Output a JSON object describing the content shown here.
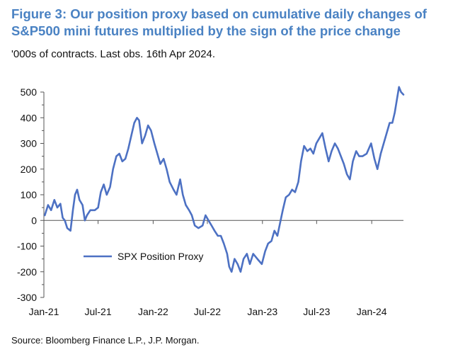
{
  "title": "Figure 3: Our position proxy based on cumulative daily changes of S&P500 mini futures multiplied by the sign of the price change",
  "subtitle": "'000s of contracts. Last obs. 16th Apr 2024.",
  "source": "Source: Bloomberg Finance L.P., J.P. Morgan.",
  "colors": {
    "title": "#4a82c3",
    "series": "#4d71c3",
    "axis": "#555555"
  },
  "chart_data": {
    "type": "line",
    "title": "Figure 3: Our position proxy based on cumulative daily changes of S&P500 mini futures multiplied by the sign of the price change",
    "subtitle": "'000s of contracts. Last obs. 16th Apr 2024.",
    "xlabel": "",
    "ylabel": "",
    "x_range": [
      "2021-01-01",
      "2024-04-16"
    ],
    "ylim": [
      -300,
      500
    ],
    "y_ticks": [
      -300,
      -200,
      -100,
      0,
      100,
      200,
      300,
      400,
      500
    ],
    "x_tick_labels": [
      "Jan-21",
      "Jul-21",
      "Jan-22",
      "Jul-22",
      "Jan-23",
      "Jul-23",
      "Jan-24"
    ],
    "x_tick_dates": [
      "2021-01-01",
      "2021-07-01",
      "2022-01-01",
      "2022-07-01",
      "2023-01-01",
      "2023-07-01",
      "2024-01-01"
    ],
    "grid": false,
    "legend_position": "left, lower-middle",
    "series": [
      {
        "name": "SPX Position Proxy",
        "points": [
          [
            "2021-01-04",
            20
          ],
          [
            "2021-01-15",
            60
          ],
          [
            "2021-01-25",
            40
          ],
          [
            "2021-02-05",
            80
          ],
          [
            "2021-02-15",
            50
          ],
          [
            "2021-02-25",
            65
          ],
          [
            "2021-03-05",
            10
          ],
          [
            "2021-03-12",
            0
          ],
          [
            "2021-03-20",
            -30
          ],
          [
            "2021-03-31",
            -40
          ],
          [
            "2021-04-08",
            40
          ],
          [
            "2021-04-15",
            100
          ],
          [
            "2021-04-22",
            120
          ],
          [
            "2021-04-30",
            80
          ],
          [
            "2021-05-10",
            60
          ],
          [
            "2021-05-18",
            0
          ],
          [
            "2021-05-25",
            20
          ],
          [
            "2021-06-05",
            40
          ],
          [
            "2021-06-20",
            40
          ],
          [
            "2021-07-01",
            50
          ],
          [
            "2021-07-10",
            110
          ],
          [
            "2021-07-20",
            140
          ],
          [
            "2021-07-30",
            100
          ],
          [
            "2021-08-10",
            130
          ],
          [
            "2021-08-20",
            200
          ],
          [
            "2021-08-31",
            250
          ],
          [
            "2021-09-10",
            260
          ],
          [
            "2021-09-20",
            230
          ],
          [
            "2021-09-30",
            240
          ],
          [
            "2021-10-10",
            280
          ],
          [
            "2021-10-20",
            330
          ],
          [
            "2021-10-30",
            380
          ],
          [
            "2021-11-08",
            400
          ],
          [
            "2021-11-15",
            390
          ],
          [
            "2021-11-25",
            300
          ],
          [
            "2021-12-05",
            330
          ],
          [
            "2021-12-15",
            370
          ],
          [
            "2021-12-25",
            350
          ],
          [
            "2022-01-05",
            300
          ],
          [
            "2022-01-15",
            260
          ],
          [
            "2022-01-25",
            220
          ],
          [
            "2022-02-05",
            240
          ],
          [
            "2022-02-15",
            200
          ],
          [
            "2022-02-25",
            150
          ],
          [
            "2022-03-10",
            120
          ],
          [
            "2022-03-20",
            100
          ],
          [
            "2022-04-01",
            160
          ],
          [
            "2022-04-10",
            100
          ],
          [
            "2022-04-20",
            60
          ],
          [
            "2022-05-01",
            40
          ],
          [
            "2022-05-10",
            20
          ],
          [
            "2022-05-20",
            -20
          ],
          [
            "2022-06-01",
            -30
          ],
          [
            "2022-06-15",
            -20
          ],
          [
            "2022-06-25",
            20
          ],
          [
            "2022-07-05",
            0
          ],
          [
            "2022-07-15",
            -20
          ],
          [
            "2022-07-25",
            -40
          ],
          [
            "2022-08-05",
            -60
          ],
          [
            "2022-08-15",
            -60
          ],
          [
            "2022-08-25",
            -90
          ],
          [
            "2022-09-05",
            -130
          ],
          [
            "2022-09-12",
            -180
          ],
          [
            "2022-09-20",
            -200
          ],
          [
            "2022-09-30",
            -150
          ],
          [
            "2022-10-10",
            -170
          ],
          [
            "2022-10-20",
            -200
          ],
          [
            "2022-10-30",
            -150
          ],
          [
            "2022-11-10",
            -130
          ],
          [
            "2022-11-20",
            -170
          ],
          [
            "2022-12-01",
            -130
          ],
          [
            "2022-12-15",
            -150
          ],
          [
            "2022-12-30",
            -170
          ],
          [
            "2023-01-10",
            -120
          ],
          [
            "2023-01-20",
            -90
          ],
          [
            "2023-01-31",
            -80
          ],
          [
            "2023-02-10",
            -40
          ],
          [
            "2023-02-20",
            -60
          ],
          [
            "2023-03-01",
            -10
          ],
          [
            "2023-03-10",
            40
          ],
          [
            "2023-03-20",
            90
          ],
          [
            "2023-03-31",
            100
          ],
          [
            "2023-04-10",
            120
          ],
          [
            "2023-04-20",
            110
          ],
          [
            "2023-05-01",
            150
          ],
          [
            "2023-05-10",
            230
          ],
          [
            "2023-05-20",
            290
          ],
          [
            "2023-05-31",
            270
          ],
          [
            "2023-06-10",
            280
          ],
          [
            "2023-06-20",
            260
          ],
          [
            "2023-06-30",
            300
          ],
          [
            "2023-07-10",
            320
          ],
          [
            "2023-07-20",
            340
          ],
          [
            "2023-07-31",
            280
          ],
          [
            "2023-08-10",
            230
          ],
          [
            "2023-08-20",
            270
          ],
          [
            "2023-08-31",
            300
          ],
          [
            "2023-09-10",
            280
          ],
          [
            "2023-09-20",
            250
          ],
          [
            "2023-09-30",
            220
          ],
          [
            "2023-10-10",
            180
          ],
          [
            "2023-10-20",
            160
          ],
          [
            "2023-10-30",
            230
          ],
          [
            "2023-11-10",
            270
          ],
          [
            "2023-11-20",
            250
          ],
          [
            "2023-12-01",
            250
          ],
          [
            "2023-12-15",
            260
          ],
          [
            "2023-12-30",
            300
          ],
          [
            "2024-01-10",
            240
          ],
          [
            "2024-01-20",
            200
          ],
          [
            "2024-01-31",
            260
          ],
          [
            "2024-02-10",
            300
          ],
          [
            "2024-02-20",
            340
          ],
          [
            "2024-03-01",
            380
          ],
          [
            "2024-03-10",
            380
          ],
          [
            "2024-03-18",
            420
          ],
          [
            "2024-03-25",
            470
          ],
          [
            "2024-04-01",
            520
          ],
          [
            "2024-04-08",
            500
          ],
          [
            "2024-04-16",
            490
          ]
        ]
      }
    ]
  }
}
